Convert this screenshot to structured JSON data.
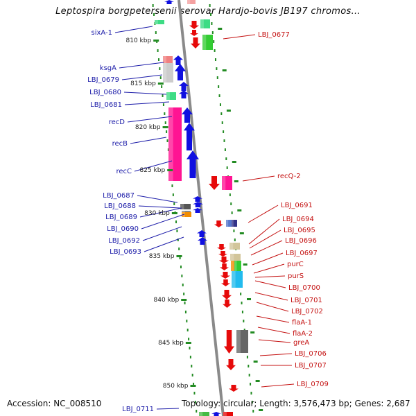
{
  "title": "Leptospira borgpetersenii serovar Hardjo-bovis JB197 chromos...",
  "footer": {
    "accession": "Accession: NC_008510",
    "topology": "Topology: circular; Length: 3,576,473 bp; Genes: 2,687"
  },
  "colors": {
    "backbone": "#8a8a8a",
    "forward_gene": "#0a0ae6",
    "reverse_gene": "#e60a0a",
    "ruler": "#228b22",
    "label_left": "#1a1aa8",
    "label_right": "#c41010"
  },
  "ruler_labels": [
    "810 kbp",
    "815 kbp",
    "820 kbp",
    "825 kbp",
    "830 kbp",
    "835 kbp",
    "840 kbp",
    "845 kbp",
    "850 kbp"
  ],
  "left_labels": [
    "sixA-1",
    "ksgA",
    "LBJ_0679",
    "LBJ_0680",
    "LBJ_0681",
    "recD",
    "recB",
    "recC",
    "LBJ_0687",
    "LBJ_0688",
    "LBJ_0689",
    "LBJ_0690",
    "LBJ_0692",
    "LBJ_0693",
    "LBJ_0711"
  ],
  "right_labels": [
    "LBJ_0677",
    "recQ-2",
    "LBJ_0691",
    "LBJ_0694",
    "LBJ_0695",
    "LBJ_0696",
    "LBJ_0697",
    "purC",
    "purS",
    "LBJ_0700",
    "LBJ_0701",
    "LBJ_0702",
    "flaA-1",
    "flaA-2",
    "greA",
    "LBJ_0706",
    "LBJ_0707",
    "LBJ_0709"
  ]
}
